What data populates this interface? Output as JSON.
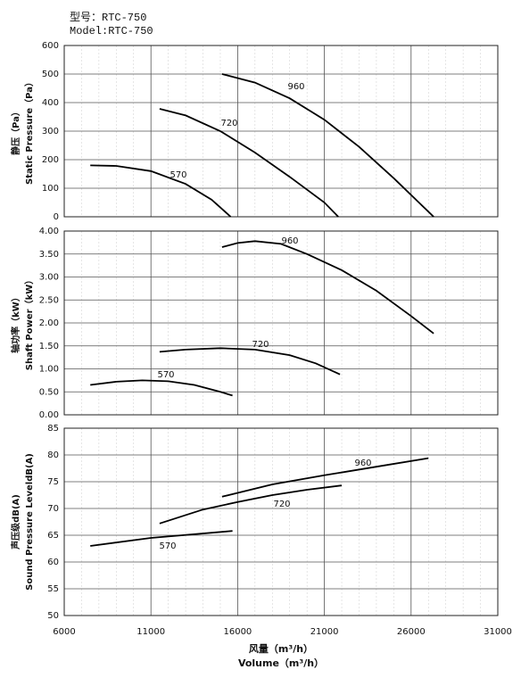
{
  "header": {
    "model_cn": "型号：RTC-750",
    "model_en": "Model:RTC-750"
  },
  "chart_data": [
    {
      "type": "line",
      "ylabel": [
        "静压（Pa）",
        "Static Pressure（Pa）"
      ],
      "ylim": [
        0,
        600
      ],
      "yticks": [
        0,
        100,
        200,
        300,
        400,
        500,
        600
      ],
      "grid": true,
      "series": [
        {
          "name": "570",
          "color": "#000000",
          "x": [
            7500,
            9000,
            11000,
            13000,
            14500,
            15600
          ],
          "values": [
            180,
            178,
            160,
            115,
            60,
            0
          ]
        },
        {
          "name": "720",
          "color": "#000000",
          "x": [
            11500,
            13000,
            15000,
            17000,
            19000,
            21000,
            21800
          ],
          "values": [
            378,
            355,
            300,
            225,
            140,
            50,
            0
          ]
        },
        {
          "name": "960",
          "color": "#000000",
          "x": [
            15100,
            17000,
            19000,
            21000,
            23000,
            25000,
            27300
          ],
          "values": [
            500,
            470,
            415,
            340,
            245,
            135,
            0
          ]
        }
      ]
    },
    {
      "type": "line",
      "ylabel": [
        "轴功率（kW）",
        "Shaft Power（kW）"
      ],
      "ylim": [
        0,
        4
      ],
      "yticks": [
        {
          "value": 0,
          "label": "0.00"
        },
        {
          "value": 0.5,
          "label": "0.50"
        },
        {
          "value": 1,
          "label": "1.00"
        },
        {
          "value": 1.5,
          "label": "1.50"
        },
        {
          "value": 2,
          "label": "2.00"
        },
        {
          "value": 2.5,
          "label": "2.50"
        },
        {
          "value": 3,
          "label": "3.00"
        },
        {
          "value": 3.5,
          "label": "3.50"
        },
        {
          "value": 4,
          "label": "4.00"
        }
      ],
      "grid": true,
      "series": [
        {
          "name": "570",
          "color": "#000000",
          "x": [
            7500,
            9000,
            10500,
            12000,
            13500,
            15000,
            15700
          ],
          "values": [
            0.65,
            0.72,
            0.75,
            0.73,
            0.65,
            0.5,
            0.42
          ]
        },
        {
          "name": "720",
          "color": "#000000",
          "x": [
            11500,
            13000,
            15000,
            17000,
            19000,
            20500,
            21900
          ],
          "values": [
            1.37,
            1.42,
            1.45,
            1.42,
            1.3,
            1.12,
            0.88
          ]
        },
        {
          "name": "960",
          "color": "#000000",
          "x": [
            15100,
            16000,
            17000,
            18500,
            20000,
            22000,
            24000,
            26000,
            27300
          ],
          "values": [
            3.65,
            3.74,
            3.78,
            3.72,
            3.5,
            3.15,
            2.7,
            2.15,
            1.77
          ]
        }
      ]
    },
    {
      "type": "line",
      "ylabel": [
        "声压级dB(A)",
        "Sound Pressure LeveldB(A)"
      ],
      "xlabel": [
        "风量（m³/h）",
        "Volume（m³/h）"
      ],
      "xlim": [
        6000,
        31000
      ],
      "xticks": [
        6000,
        11000,
        16000,
        21000,
        26000,
        31000
      ],
      "ylim": [
        50,
        85
      ],
      "yticks": [
        50,
        55,
        60,
        65,
        70,
        75,
        80,
        85
      ],
      "grid": true,
      "series": [
        {
          "name": "570",
          "color": "#000000",
          "x": [
            7500,
            11000,
            15700
          ],
          "values": [
            63,
            64.5,
            65.8
          ]
        },
        {
          "name": "720",
          "color": "#000000",
          "x": [
            11500,
            14000,
            16000,
            18000,
            20000,
            22000
          ],
          "values": [
            67.2,
            69.8,
            71.2,
            72.5,
            73.5,
            74.3
          ]
        },
        {
          "name": "960",
          "color": "#000000",
          "x": [
            15100,
            18000,
            21000,
            24000,
            27000
          ],
          "values": [
            72.2,
            74.5,
            76.2,
            77.8,
            79.4
          ]
        }
      ]
    }
  ]
}
